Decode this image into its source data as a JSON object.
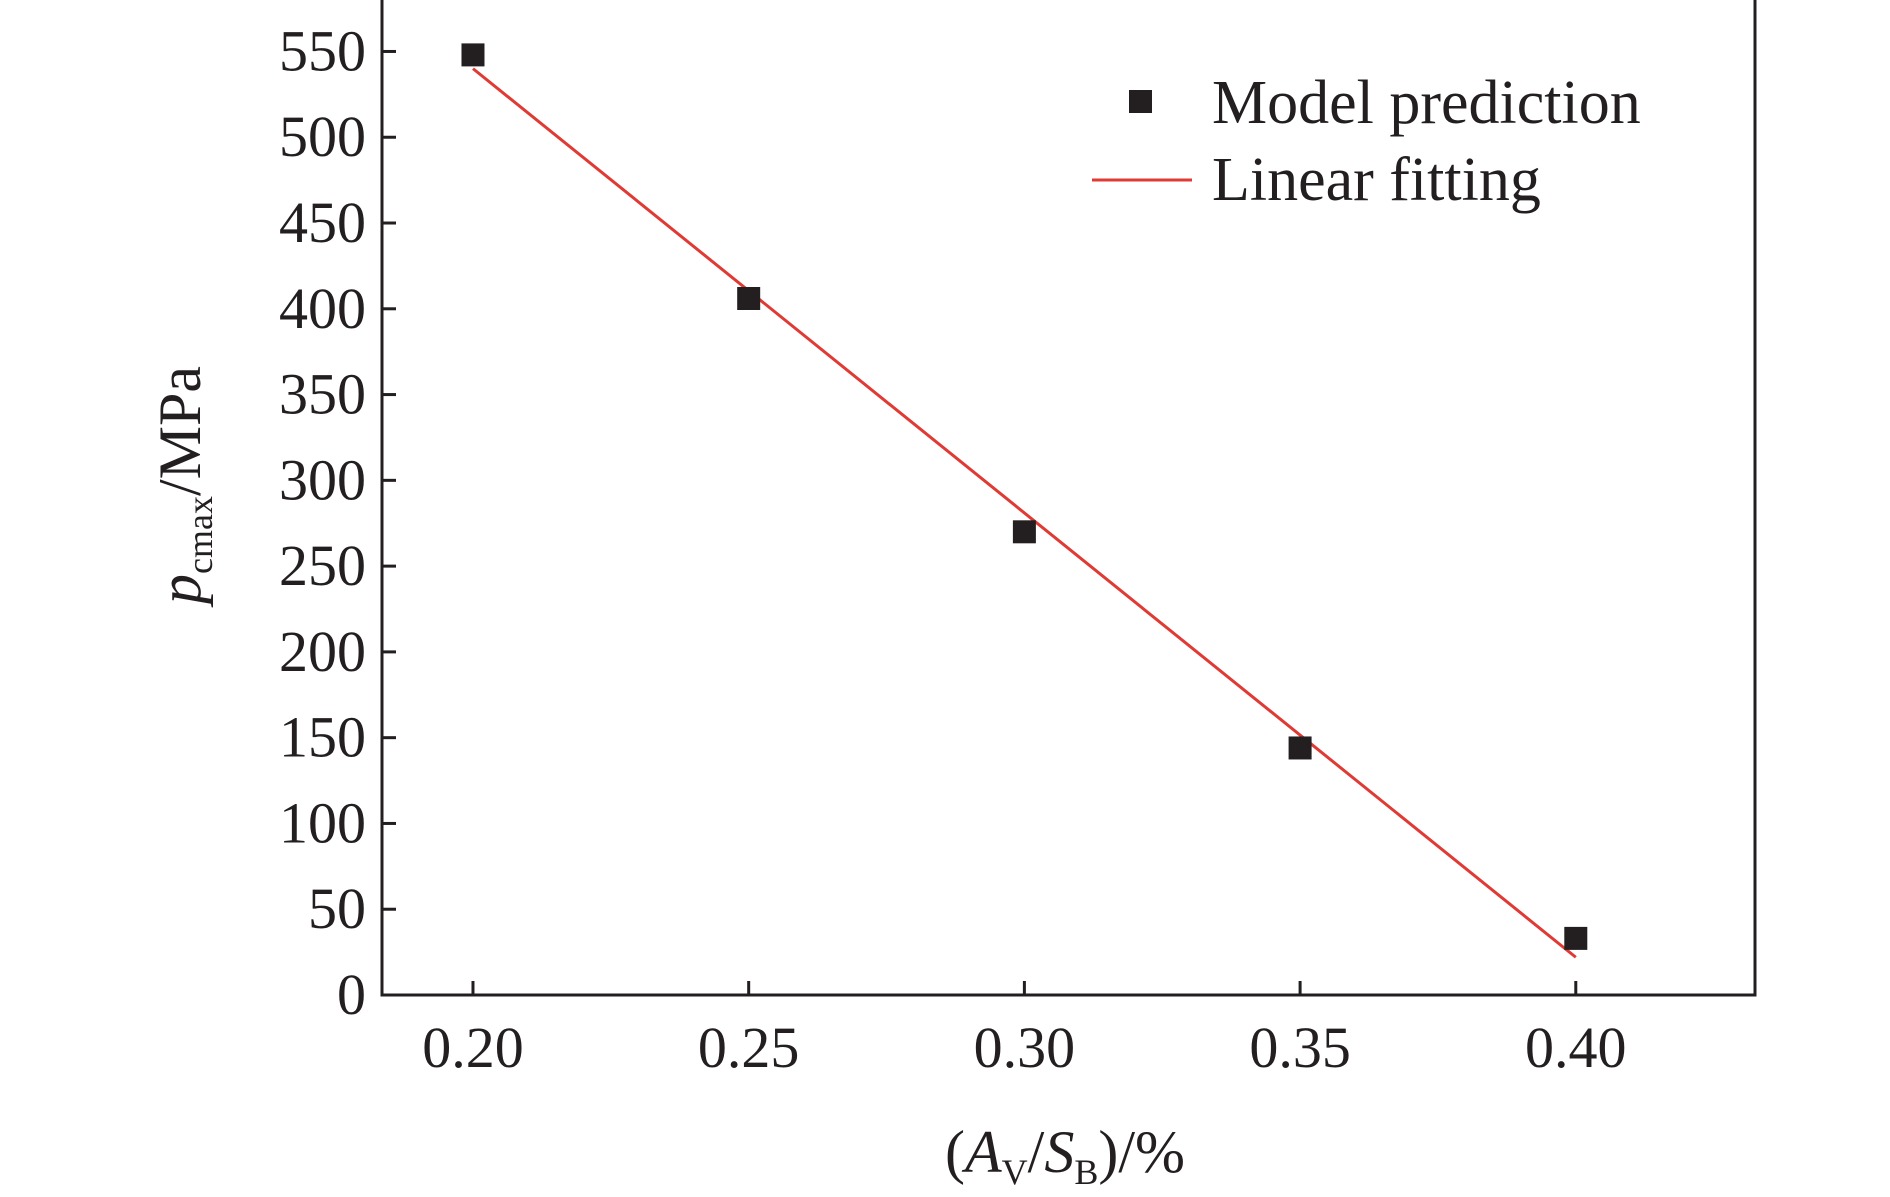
{
  "chart_data": {
    "type": "scatter",
    "x": [
      0.2,
      0.25,
      0.3,
      0.35,
      0.4
    ],
    "series": [
      {
        "name": "Model prediction",
        "kind": "scatter",
        "marker": "square",
        "color": "#231f20",
        "values": [
          548,
          406,
          270,
          144,
          33
        ]
      },
      {
        "name": "Linear fitting",
        "kind": "line",
        "color": "#e03a35",
        "x": [
          0.2,
          0.4
        ],
        "values": [
          540,
          22
        ]
      }
    ],
    "xlabel": {
      "prefix": "(",
      "a": "A",
      "a_sub": "V",
      "slash": "/",
      "b": "S",
      "b_sub": "B",
      "suffix": ")/%"
    },
    "ylabel": {
      "p": "p",
      "p_sub": "cmax",
      "suffix": "/MPa"
    },
    "xlim": [
      0.1835,
      0.4325
    ],
    "ylim": [
      0,
      580
    ],
    "xticks": [
      0.2,
      0.25,
      0.3,
      0.35,
      0.4
    ],
    "xtick_labels": [
      "0.20",
      "0.25",
      "0.30",
      "0.35",
      "0.40"
    ],
    "yticks": [
      0,
      50,
      100,
      150,
      200,
      250,
      300,
      350,
      400,
      450,
      500,
      550
    ],
    "ytick_labels": [
      "0",
      "50",
      "100",
      "150",
      "200",
      "250",
      "300",
      "350",
      "400",
      "450",
      "500",
      "550"
    ],
    "legend_position": "top-right",
    "grid": false
  }
}
